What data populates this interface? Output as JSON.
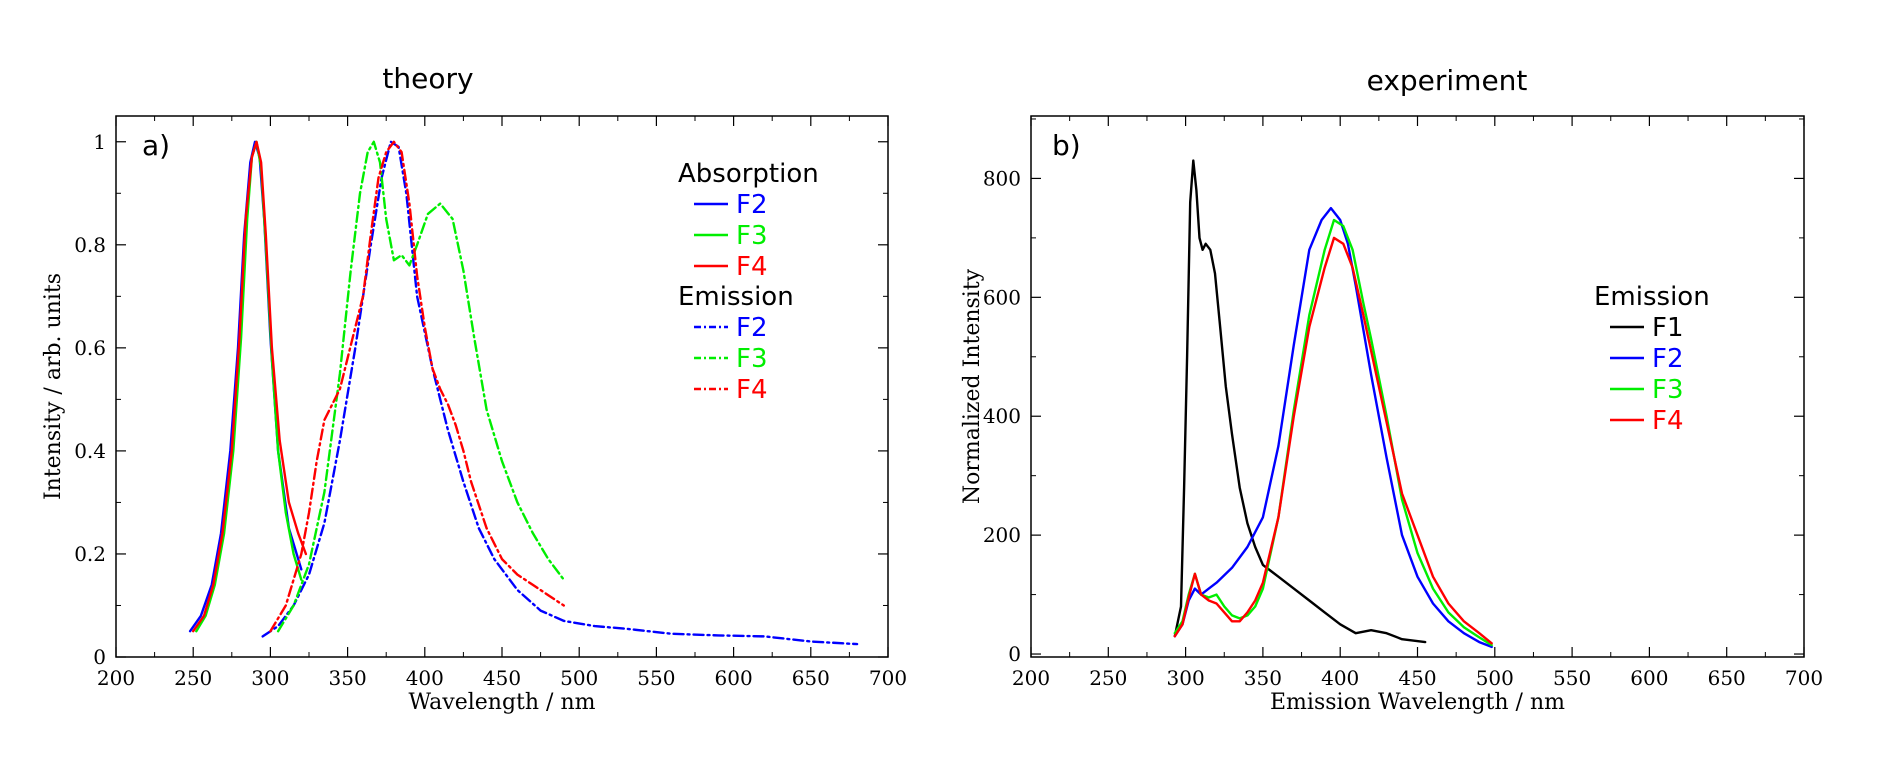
{
  "chart_data": [
    {
      "type": "line",
      "title": "theory",
      "panel_label": "a)",
      "xlabel": "Wavelength / nm",
      "ylabel": "Intensity / arb. units",
      "xlim": [
        200,
        700
      ],
      "ylim": [
        0,
        1.05
      ],
      "xticks": [
        200,
        250,
        300,
        350,
        400,
        450,
        500,
        550,
        600,
        650,
        700
      ],
      "yticks": [
        0,
        0.2,
        0.4,
        0.6,
        0.8,
        1
      ],
      "ytick_labels": [
        "0",
        "0.2",
        "0.4",
        "0.6",
        "0.8",
        "1"
      ],
      "legend_groups": [
        {
          "heading": "Absorption",
          "style": "solid",
          "series": [
            0,
            1,
            2
          ]
        },
        {
          "heading": "Emission",
          "style": "dashdot",
          "series": [
            3,
            4,
            5
          ]
        }
      ],
      "series": [
        {
          "group": "Absorption",
          "name": "F2",
          "color": "#0000ff",
          "style": "solid",
          "x": [
            248,
            255,
            262,
            268,
            274,
            279,
            283,
            287,
            290,
            293,
            296,
            300,
            305,
            312,
            320
          ],
          "y": [
            0.05,
            0.08,
            0.14,
            0.24,
            0.4,
            0.6,
            0.82,
            0.96,
            1.0,
            0.97,
            0.85,
            0.62,
            0.4,
            0.25,
            0.17
          ]
        },
        {
          "group": "Absorption",
          "name": "F3",
          "color": "#00ee00",
          "style": "solid",
          "x": [
            252,
            258,
            264,
            270,
            276,
            281,
            285,
            288,
            291,
            294,
            297,
            301,
            305,
            310,
            315,
            320
          ],
          "y": [
            0.05,
            0.08,
            0.14,
            0.24,
            0.4,
            0.62,
            0.85,
            0.97,
            1.0,
            0.95,
            0.8,
            0.58,
            0.4,
            0.28,
            0.2,
            0.15
          ]
        },
        {
          "group": "Absorption",
          "name": "F4",
          "color": "#ff0000",
          "style": "solid",
          "x": [
            250,
            257,
            263,
            269,
            275,
            280,
            284,
            288,
            291,
            294,
            297,
            301,
            306,
            312,
            318,
            323
          ],
          "y": [
            0.05,
            0.08,
            0.14,
            0.24,
            0.4,
            0.62,
            0.85,
            0.97,
            1.0,
            0.96,
            0.82,
            0.6,
            0.42,
            0.3,
            0.24,
            0.2
          ]
        },
        {
          "group": "Emission",
          "name": "F2",
          "color": "#0000ff",
          "style": "dashdot",
          "x": [
            295,
            305,
            315,
            325,
            335,
            345,
            355,
            365,
            372,
            378,
            383,
            388,
            395,
            405,
            415,
            425,
            435,
            445,
            460,
            475,
            490,
            510,
            530,
            560,
            590,
            620,
            650,
            680
          ],
          "y": [
            0.04,
            0.06,
            0.1,
            0.16,
            0.26,
            0.42,
            0.6,
            0.8,
            0.93,
            1.0,
            0.99,
            0.9,
            0.7,
            0.56,
            0.44,
            0.34,
            0.25,
            0.19,
            0.13,
            0.09,
            0.07,
            0.06,
            0.055,
            0.045,
            0.042,
            0.04,
            0.03,
            0.025
          ]
        },
        {
          "group": "Emission",
          "name": "F3",
          "color": "#00ee00",
          "style": "dashdot",
          "x": [
            305,
            315,
            325,
            335,
            345,
            352,
            358,
            363,
            367,
            371,
            375,
            380,
            385,
            390,
            395,
            402,
            410,
            418,
            425,
            432,
            440,
            450,
            460,
            470,
            480,
            490
          ],
          "y": [
            0.05,
            0.1,
            0.18,
            0.32,
            0.55,
            0.75,
            0.9,
            0.98,
            1.0,
            0.96,
            0.85,
            0.77,
            0.78,
            0.76,
            0.8,
            0.86,
            0.88,
            0.85,
            0.75,
            0.62,
            0.48,
            0.38,
            0.3,
            0.24,
            0.19,
            0.15
          ]
        },
        {
          "group": "Emission",
          "name": "F4",
          "color": "#ff0000",
          "style": "dashdot",
          "x": [
            300,
            310,
            320,
            325,
            330,
            335,
            340,
            345,
            350,
            355,
            360,
            365,
            370,
            375,
            380,
            385,
            390,
            395,
            400,
            405,
            410,
            415,
            420,
            425,
            430,
            440,
            450,
            460,
            470,
            480,
            490
          ],
          "y": [
            0.05,
            0.1,
            0.2,
            0.28,
            0.38,
            0.46,
            0.49,
            0.52,
            0.58,
            0.64,
            0.7,
            0.82,
            0.93,
            0.98,
            1.0,
            0.98,
            0.88,
            0.74,
            0.64,
            0.56,
            0.52,
            0.49,
            0.45,
            0.4,
            0.34,
            0.25,
            0.19,
            0.16,
            0.14,
            0.12,
            0.1
          ]
        }
      ]
    },
    {
      "type": "line",
      "title": "experiment",
      "panel_label": "b)",
      "xlabel": "Emission Wavelength / nm",
      "ylabel": "Normalized Intensity",
      "xlim": [
        200,
        700
      ],
      "ylim": [
        -5,
        905
      ],
      "xticks": [
        200,
        250,
        300,
        350,
        400,
        450,
        500,
        550,
        600,
        650,
        700
      ],
      "yticks": [
        0,
        200,
        400,
        600,
        800
      ],
      "ytick_labels": [
        "0",
        "200",
        "400",
        "600",
        "800"
      ],
      "legend_groups": [
        {
          "heading": "Emission",
          "style": "solid",
          "series": [
            0,
            1,
            2,
            3
          ]
        }
      ],
      "series": [
        {
          "group": "Emission",
          "name": "F1",
          "color": "#000000",
          "style": "solid",
          "x": [
            293,
            297,
            299,
            301,
            303,
            305,
            307,
            309,
            311,
            313,
            316,
            319,
            322,
            326,
            330,
            335,
            340,
            345,
            350,
            360,
            370,
            380,
            390,
            400,
            410,
            420,
            430,
            440,
            455
          ],
          "y": [
            30,
            80,
            280,
            500,
            760,
            830,
            780,
            700,
            680,
            690,
            680,
            640,
            560,
            450,
            370,
            280,
            220,
            180,
            150,
            130,
            110,
            90,
            70,
            50,
            35,
            40,
            35,
            25,
            20
          ]
        },
        {
          "group": "Emission",
          "name": "F2",
          "color": "#0000ff",
          "style": "solid",
          "x": [
            293,
            298,
            302,
            306,
            310,
            315,
            320,
            330,
            340,
            350,
            360,
            370,
            380,
            388,
            394,
            400,
            405,
            410,
            420,
            430,
            440,
            450,
            460,
            470,
            480,
            490,
            498
          ],
          "y": [
            30,
            50,
            90,
            110,
            100,
            110,
            120,
            145,
            180,
            230,
            350,
            520,
            680,
            730,
            750,
            730,
            690,
            620,
            470,
            330,
            200,
            130,
            85,
            55,
            35,
            20,
            12
          ]
        },
        {
          "group": "Emission",
          "name": "F3",
          "color": "#00ee00",
          "style": "solid",
          "x": [
            293,
            298,
            302,
            306,
            310,
            315,
            320,
            325,
            330,
            335,
            340,
            345,
            350,
            360,
            370,
            380,
            390,
            396,
            402,
            408,
            415,
            420,
            430,
            440,
            450,
            460,
            470,
            480,
            490,
            498
          ],
          "y": [
            35,
            55,
            100,
            135,
            100,
            95,
            100,
            80,
            65,
            60,
            65,
            80,
            110,
            230,
            410,
            570,
            680,
            730,
            720,
            680,
            590,
            530,
            400,
            260,
            170,
            110,
            70,
            45,
            28,
            15
          ]
        },
        {
          "group": "Emission",
          "name": "F4",
          "color": "#ff0000",
          "style": "solid",
          "x": [
            293,
            298,
            302,
            306,
            310,
            315,
            320,
            325,
            330,
            335,
            340,
            345,
            350,
            360,
            370,
            380,
            390,
            396,
            402,
            408,
            415,
            420,
            430,
            440,
            450,
            460,
            470,
            480,
            490,
            498
          ],
          "y": [
            30,
            50,
            95,
            135,
            100,
            90,
            85,
            70,
            55,
            55,
            70,
            90,
            120,
            230,
            400,
            550,
            650,
            700,
            690,
            650,
            570,
            510,
            390,
            270,
            200,
            130,
            85,
            55,
            35,
            18
          ]
        }
      ]
    }
  ]
}
